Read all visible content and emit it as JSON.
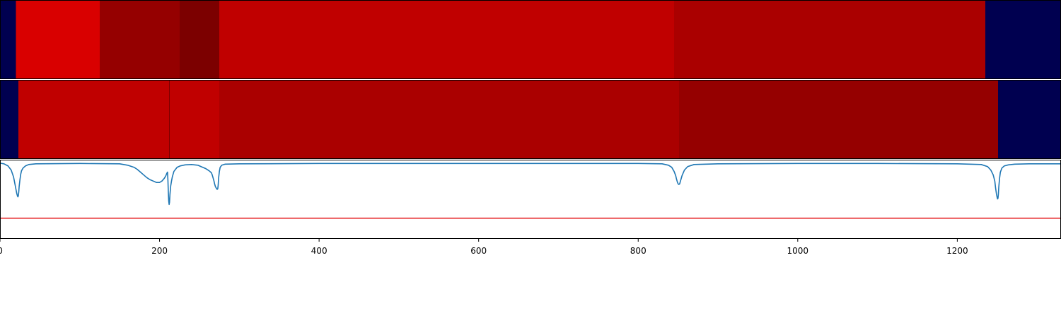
{
  "chart_data": {
    "type": "heatmap",
    "x_range": [
      0,
      1330
    ],
    "x_ticks": [
      {
        "value": 0,
        "label": "0"
      },
      {
        "value": 200,
        "label": "200"
      },
      {
        "value": 400,
        "label": "400"
      },
      {
        "value": 600,
        "label": "600"
      },
      {
        "value": 800,
        "label": "800"
      },
      {
        "value": 1000,
        "label": "1000"
      },
      {
        "value": 1200,
        "label": "1200"
      }
    ],
    "rows": [
      {
        "segments": [
          {
            "start": 0,
            "end": 20,
            "color": "#000050"
          },
          {
            "start": 20,
            "end": 125,
            "color": "#d90000"
          },
          {
            "start": 125,
            "end": 225,
            "color": "#950000"
          },
          {
            "start": 225,
            "end": 275,
            "color": "#7c0000"
          },
          {
            "start": 275,
            "end": 845,
            "color": "#c00000"
          },
          {
            "start": 845,
            "end": 1235,
            "color": "#aa0000"
          },
          {
            "start": 1235,
            "end": 1330,
            "color": "#000050"
          }
        ]
      },
      {
        "segments": [
          {
            "start": 0,
            "end": 23,
            "color": "#000050"
          },
          {
            "start": 23,
            "end": 212,
            "color": "#c00000"
          },
          {
            "start": 212,
            "end": 213,
            "color": "#7c0000"
          },
          {
            "start": 213,
            "end": 275,
            "color": "#c00000"
          },
          {
            "start": 275,
            "end": 851,
            "color": "#aa0000"
          },
          {
            "start": 851,
            "end": 1251,
            "color": "#950000"
          },
          {
            "start": 1251,
            "end": 1330,
            "color": "#000050"
          }
        ]
      }
    ],
    "line_panel": {
      "y_range": [
        -1.1,
        0.05
      ],
      "threshold": -0.8,
      "threshold_color": "#e41a1c",
      "series_color": "#1f77b4",
      "series": {
        "x": [
          0,
          5,
          10,
          14,
          17,
          19,
          20,
          21,
          22,
          22.5,
          23,
          23.5,
          24,
          25,
          26,
          27,
          29,
          32,
          36,
          45,
          100,
          150,
          160,
          168,
          172,
          176,
          180,
          184,
          188,
          192,
          196,
          200,
          203,
          206,
          208,
          209,
          210,
          210.5,
          211,
          211.5,
          212,
          212.5,
          213,
          214,
          215,
          216,
          217,
          218,
          220,
          222,
          226,
          232,
          240,
          248,
          252,
          258,
          262,
          265,
          266,
          267,
          268,
          269,
          270,
          271,
          272,
          272.5,
          273,
          273.5,
          274,
          275,
          276,
          278,
          282,
          300,
          400,
          500,
          600,
          700,
          800,
          830,
          838,
          842,
          845,
          847,
          848,
          849,
          850,
          851,
          852,
          853,
          855,
          858,
          862,
          870,
          900,
          1000,
          1100,
          1200,
          1230,
          1238,
          1242,
          1245,
          1247,
          1248,
          1249,
          1250,
          1250.5,
          1251,
          1251.5,
          1252,
          1253,
          1254,
          1256,
          1259,
          1264,
          1272,
          1290,
          1330
        ],
        "y": [
          0,
          -0.01,
          -0.04,
          -0.1,
          -0.2,
          -0.32,
          -0.38,
          -0.44,
          -0.48,
          -0.49,
          -0.47,
          -0.42,
          -0.34,
          -0.24,
          -0.16,
          -0.11,
          -0.07,
          -0.04,
          -0.02,
          -0.01,
          -0.005,
          -0.01,
          -0.03,
          -0.06,
          -0.09,
          -0.13,
          -0.17,
          -0.21,
          -0.24,
          -0.26,
          -0.28,
          -0.28,
          -0.26,
          -0.22,
          -0.18,
          -0.15,
          -0.13,
          -0.25,
          -0.42,
          -0.55,
          -0.6,
          -0.57,
          -0.46,
          -0.33,
          -0.26,
          -0.2,
          -0.16,
          -0.12,
          -0.09,
          -0.06,
          -0.04,
          -0.025,
          -0.02,
          -0.03,
          -0.05,
          -0.08,
          -0.11,
          -0.14,
          -0.17,
          -0.21,
          -0.25,
          -0.3,
          -0.34,
          -0.36,
          -0.38,
          -0.38,
          -0.37,
          -0.32,
          -0.22,
          -0.12,
          -0.06,
          -0.03,
          -0.015,
          -0.01,
          -0.005,
          -0.005,
          -0.005,
          -0.005,
          -0.005,
          -0.01,
          -0.03,
          -0.06,
          -0.12,
          -0.18,
          -0.23,
          -0.27,
          -0.3,
          -0.31,
          -0.3,
          -0.26,
          -0.18,
          -0.1,
          -0.05,
          -0.02,
          -0.01,
          -0.005,
          -0.005,
          -0.01,
          -0.02,
          -0.05,
          -0.1,
          -0.17,
          -0.26,
          -0.36,
          -0.44,
          -0.5,
          -0.52,
          -0.51,
          -0.45,
          -0.35,
          -0.22,
          -0.13,
          -0.07,
          -0.04,
          -0.025,
          -0.015,
          -0.01,
          -0.01
        ]
      }
    }
  }
}
